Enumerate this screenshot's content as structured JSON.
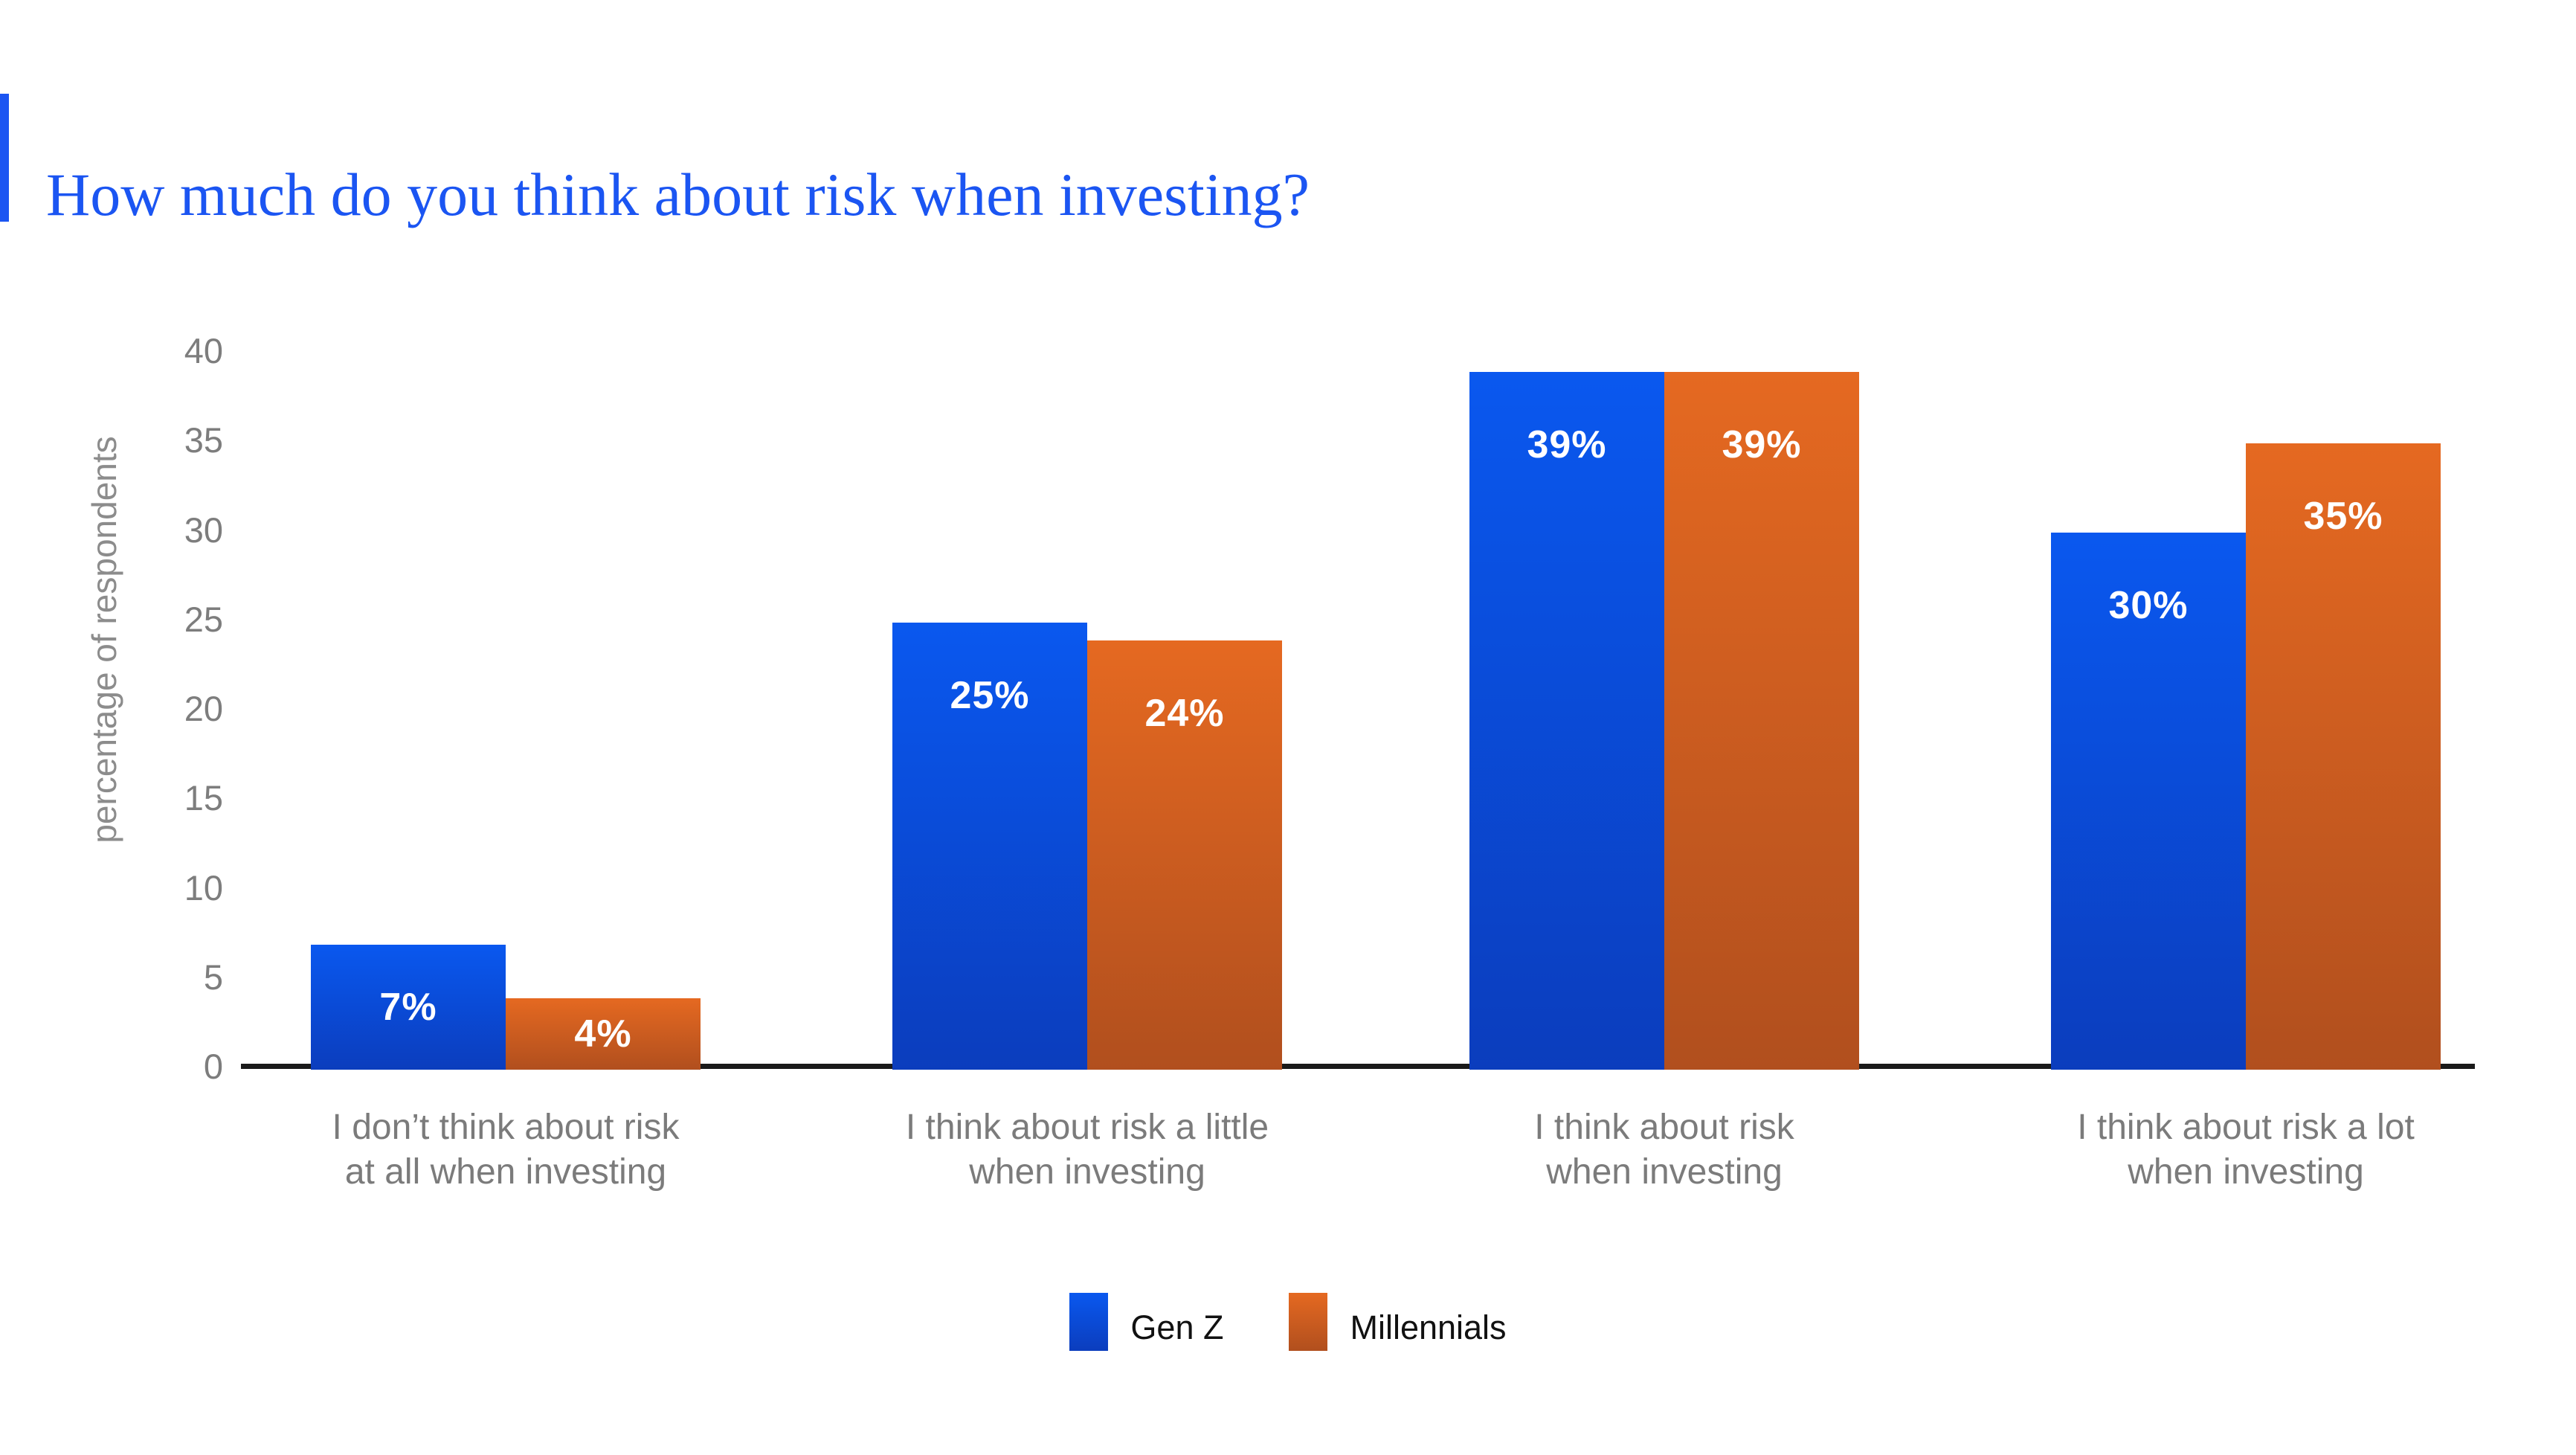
{
  "header": {
    "title": "How much do you think about risk when investing?",
    "title_color": "#1b55f2",
    "accent_color": "#1b55f2"
  },
  "chart_data": {
    "type": "bar",
    "title": "How much do you think about risk when investing?",
    "xlabel": "",
    "ylabel": "percentage of respondents",
    "ylim": [
      0,
      40
    ],
    "yticks": [
      0,
      5,
      10,
      15,
      20,
      25,
      30,
      35,
      40
    ],
    "grid": false,
    "legend_position": "bottom",
    "value_suffix": "%",
    "categories": [
      [
        "I don’t think about risk",
        "at all when investing"
      ],
      [
        "I think about risk a little",
        "when investing"
      ],
      [
        "I think about risk",
        "when investing"
      ],
      [
        "I think about risk a lot",
        "when investing"
      ]
    ],
    "series": [
      {
        "name": "Gen Z",
        "values": [
          7,
          25,
          39,
          30
        ],
        "labels": [
          "7%",
          "25%",
          "39%",
          "30%"
        ],
        "color_top": "#0a58ef",
        "color_bottom": "#0b3dbd"
      },
      {
        "name": "Millennials",
        "values": [
          4,
          24,
          39,
          35
        ],
        "labels": [
          "4%",
          "24%",
          "39%",
          "35%"
        ],
        "color_top": "#e56921",
        "color_bottom": "#b14f1e"
      }
    ],
    "axis_colors": {
      "tick_label": "#7d7d7d",
      "axis_line": "#1a1a1a",
      "category_label": "#7b7b7b",
      "ylabel": "#8c8c8c"
    }
  }
}
